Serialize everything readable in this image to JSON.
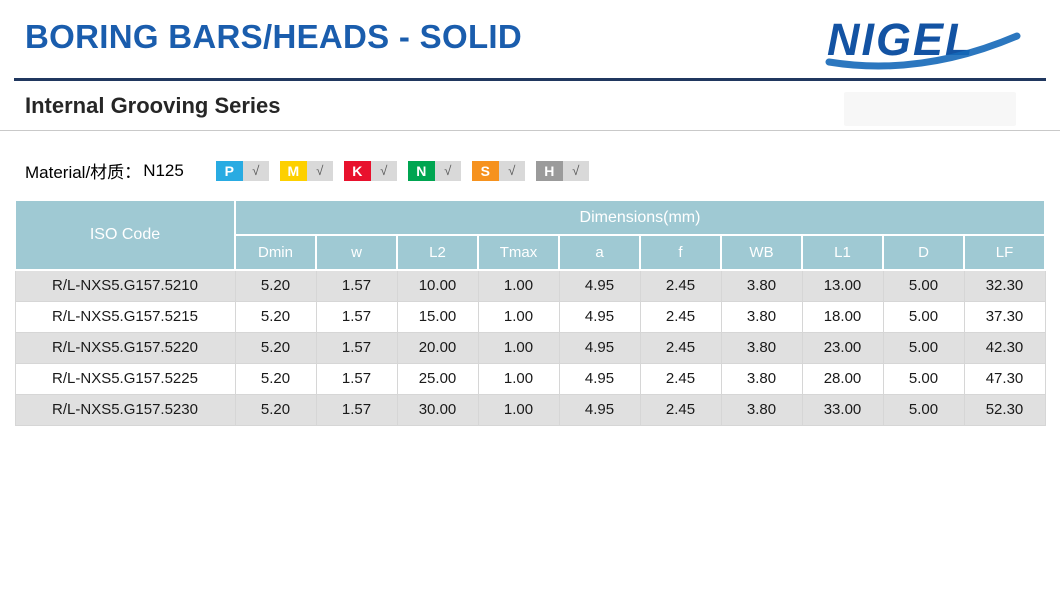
{
  "page": {
    "title": "BORING BARS/HEADS - SOLID",
    "subtitle": "Internal Grooving Series",
    "brand": "NIGEL"
  },
  "material": {
    "label": "Material/材质：",
    "value": "N125",
    "check": "√",
    "badges": [
      {
        "letter": "P",
        "color": "#29abe2"
      },
      {
        "letter": "M",
        "color": "#fdd000"
      },
      {
        "letter": "K",
        "color": "#e8112d"
      },
      {
        "letter": "N",
        "color": "#00a551"
      },
      {
        "letter": "S",
        "color": "#f6921e"
      },
      {
        "letter": "H",
        "color": "#9b9b9b"
      }
    ]
  },
  "table": {
    "iso_header": "ISO Code",
    "dims_header": "Dimensions(mm)",
    "columns": [
      "Dmin",
      "w",
      "L2",
      "Tmax",
      "a",
      "f",
      "WB",
      "L1",
      "D",
      "LF"
    ],
    "rows": [
      {
        "code": "R/L-NXS5.G157.5210",
        "values": [
          "5.20",
          "1.57",
          "10.00",
          "1.00",
          "4.95",
          "2.45",
          "3.80",
          "13.00",
          "5.00",
          "32.30"
        ]
      },
      {
        "code": "R/L-NXS5.G157.5215",
        "values": [
          "5.20",
          "1.57",
          "15.00",
          "1.00",
          "4.95",
          "2.45",
          "3.80",
          "18.00",
          "5.00",
          "37.30"
        ]
      },
      {
        "code": "R/L-NXS5.G157.5220",
        "values": [
          "5.20",
          "1.57",
          "20.00",
          "1.00",
          "4.95",
          "2.45",
          "3.80",
          "23.00",
          "5.00",
          "42.30"
        ]
      },
      {
        "code": "R/L-NXS5.G157.5225",
        "values": [
          "5.20",
          "1.57",
          "25.00",
          "1.00",
          "4.95",
          "2.45",
          "3.80",
          "28.00",
          "5.00",
          "47.30"
        ]
      },
      {
        "code": "R/L-NXS5.G157.5230",
        "values": [
          "5.20",
          "1.57",
          "30.00",
          "1.00",
          "4.95",
          "2.45",
          "3.80",
          "33.00",
          "5.00",
          "52.30"
        ]
      }
    ]
  },
  "colors": {
    "title_blue": "#1a5dad",
    "rule_navy": "#20375f",
    "table_header_bg": "#9fc9d3",
    "row_alt_gray": "#e0e0e0",
    "check_box_bg": "#d9d9d9"
  }
}
